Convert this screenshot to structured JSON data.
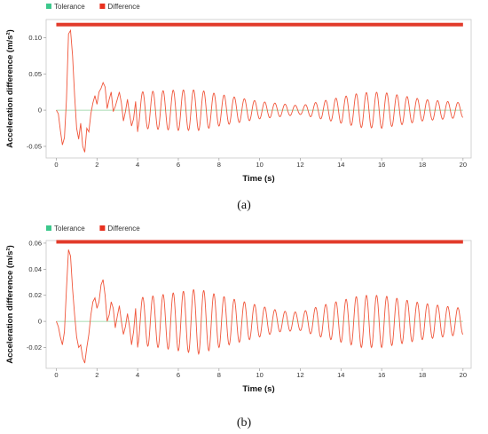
{
  "chart_data": [
    {
      "id": "a",
      "type": "line",
      "caption": "(a)",
      "xlabel": "Time (s)",
      "ylabel": "Acceleration difference (m/s²)",
      "xlim": [
        -0.5,
        20.4
      ],
      "ylim": [
        -0.066,
        0.125
      ],
      "xticks": [
        0,
        2,
        4,
        6,
        8,
        10,
        12,
        14,
        16,
        18,
        20
      ],
      "yticks": [
        -0.05,
        0,
        0.05,
        0.1
      ],
      "ytick_labels": [
        "-0.05",
        "0",
        "0.05",
        "0.10"
      ],
      "legend": [
        {
          "name": "Tolerance",
          "color": "#3cc88c"
        },
        {
          "name": "Difference",
          "color": "#e8301e"
        }
      ],
      "tolerance_band_top": 0.118,
      "series": [
        {
          "name": "Difference",
          "color": "#f0553a",
          "x": [
            0,
            0.1,
            0.2,
            0.3,
            0.4,
            0.5,
            0.6,
            0.7,
            0.8,
            0.9,
            1.0,
            1.1,
            1.2,
            1.3,
            1.4,
            1.5,
            1.6,
            1.7,
            1.8,
            1.9,
            2.0,
            2.1,
            2.2,
            2.3,
            2.4,
            2.5,
            2.6,
            2.7,
            2.8,
            2.9,
            3.0,
            3.1,
            3.2,
            3.3,
            3.4,
            3.5,
            3.6,
            3.7,
            3.8,
            3.9,
            4.0
          ],
          "y": [
            0,
            -0.005,
            -0.028,
            -0.048,
            -0.038,
            0.015,
            0.105,
            0.11,
            0.075,
            0.02,
            -0.025,
            -0.04,
            -0.018,
            -0.05,
            -0.058,
            -0.025,
            -0.03,
            -0.005,
            0.01,
            0.02,
            0.008,
            0.025,
            0.03,
            0.038,
            0.032,
            0.002,
            0.015,
            0.025,
            -0.002,
            0.005,
            0.015,
            0.025,
            0.01,
            -0.015,
            -0.002,
            0.015,
            -0.005,
            -0.022,
            -0.012,
            0.012,
            -0.03
          ]
        }
      ],
      "oscillation": {
        "start_s": 4.0,
        "end_s": 20.0,
        "frequency_hz": 2.0,
        "amplitude_envelope": [
          [
            4,
            0.025
          ],
          [
            6,
            0.028
          ],
          [
            7,
            0.028
          ],
          [
            8,
            0.022
          ],
          [
            10,
            0.012
          ],
          [
            12,
            0.006
          ],
          [
            13,
            0.012
          ],
          [
            15,
            0.024
          ],
          [
            16,
            0.025
          ],
          [
            18,
            0.015
          ],
          [
            20,
            0.01
          ]
        ]
      },
      "tolerance_line": 0.0
    },
    {
      "id": "b",
      "type": "line",
      "caption": "(b)",
      "xlabel": "Time (s)",
      "ylabel": "Acceleration difference (m/s²)",
      "xlim": [
        -0.5,
        20.4
      ],
      "ylim": [
        -0.036,
        0.062
      ],
      "xticks": [
        0,
        2,
        4,
        6,
        8,
        10,
        12,
        14,
        16,
        18,
        20
      ],
      "yticks": [
        -0.02,
        0,
        0.02,
        0.04,
        0.06
      ],
      "ytick_labels": [
        "-0.02",
        "0",
        "0.02",
        "0.04",
        "0.06"
      ],
      "legend": [
        {
          "name": "Tolerance",
          "color": "#3cc88c"
        },
        {
          "name": "Difference",
          "color": "#e8301e"
        }
      ],
      "tolerance_band_top": 0.061,
      "series": [
        {
          "name": "Difference",
          "color": "#f0553a",
          "x": [
            0,
            0.1,
            0.2,
            0.3,
            0.4,
            0.5,
            0.6,
            0.7,
            0.8,
            0.9,
            1.0,
            1.1,
            1.2,
            1.3,
            1.4,
            1.5,
            1.6,
            1.7,
            1.8,
            1.9,
            2.0,
            2.1,
            2.2,
            2.3,
            2.4,
            2.5,
            2.6,
            2.7,
            2.8,
            2.9,
            3.0,
            3.1,
            3.2,
            3.3,
            3.4,
            3.5,
            3.6,
            3.7,
            3.8,
            3.9,
            4.0
          ],
          "y": [
            0,
            -0.004,
            -0.012,
            -0.018,
            -0.008,
            0.025,
            0.055,
            0.05,
            0.025,
            0.005,
            -0.012,
            -0.02,
            -0.018,
            -0.028,
            -0.032,
            -0.02,
            -0.01,
            0.005,
            0.015,
            0.018,
            0.01,
            0.015,
            0.028,
            0.032,
            0.02,
            0.0,
            0.005,
            0.015,
            0.01,
            -0.005,
            0.004,
            0.012,
            0.0,
            -0.01,
            -0.004,
            0.006,
            -0.004,
            -0.018,
            -0.008,
            0.01,
            -0.02
          ]
        }
      ],
      "oscillation": {
        "start_s": 4.0,
        "end_s": 20.0,
        "frequency_hz": 2.0,
        "amplitude_envelope": [
          [
            4,
            0.018
          ],
          [
            5,
            0.02
          ],
          [
            7,
            0.025
          ],
          [
            8,
            0.02
          ],
          [
            10,
            0.012
          ],
          [
            11,
            0.008
          ],
          [
            12,
            0.007
          ],
          [
            13,
            0.012
          ],
          [
            15,
            0.02
          ],
          [
            16,
            0.02
          ],
          [
            18,
            0.014
          ],
          [
            20,
            0.01
          ]
        ]
      },
      "tolerance_line": 0.0
    }
  ]
}
